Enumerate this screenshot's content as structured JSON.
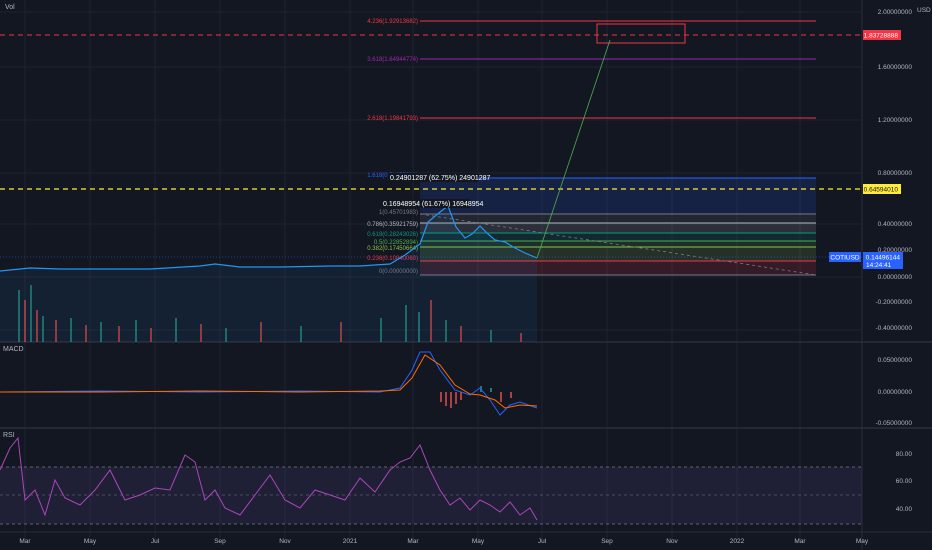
{
  "panels": {
    "main_label": "Vol",
    "macd_label": "MACD",
    "rsi_label": "RSI"
  },
  "currency": "USD",
  "price_axis": {
    "main_ticks": [
      "2.00000000",
      "1.60000000",
      "1.20000000",
      "0.80000000",
      "0.40000000",
      "0.20000000",
      "0.00000000",
      "-0.20000000",
      "-0.40000000"
    ],
    "macd_ticks": [
      "0.05000000",
      "0.00000000",
      "-0.05000000"
    ],
    "rsi_ticks": [
      "80.00",
      "60.00",
      "40.00"
    ]
  },
  "time_axis": [
    "Mar",
    "May",
    "Jul",
    "Sep",
    "Nov",
    "2021",
    "Mar",
    "May",
    "Jul",
    "Sep",
    "Nov",
    "2022",
    "Mar",
    "May"
  ],
  "badges": {
    "red_level": "1.83728888",
    "yellow_level": "0.64594010",
    "symbol": "COTIUSD",
    "last_price": "0.14496144",
    "countdown": "14:24:41"
  },
  "fib_levels": [
    {
      "label": "4.236(1.92913682)",
      "color": "#f23645"
    },
    {
      "label": "3.618(1.64944774)",
      "color": "#9c27b0"
    },
    {
      "label": "2.618(1.19841793)",
      "color": "#f23645"
    },
    {
      "label": "1.618(0.74675082)",
      "color": "#2962ff"
    },
    {
      "label": "1(0.45701983)",
      "color": "#787b86"
    },
    {
      "label": "0.786(0.35921759)",
      "color": "#b2b5be"
    },
    {
      "label": "0.618(0.28243026)",
      "color": "#089981"
    },
    {
      "label": "0.5(0.22852894)",
      "color": "#4caf50"
    },
    {
      "label": "0.382(0.17450664)",
      "color": "#8bc34a"
    },
    {
      "label": "0.236(0.10840060)",
      "color": "#f23645"
    },
    {
      "label": "0(0.00000000)",
      "color": "#787b86"
    }
  ],
  "measure_labels": {
    "top": "0.24901287 (62.75%) 24901287",
    "lower": "0.16948954 (61.67%) 16948954"
  },
  "colors": {
    "price": "#2196f3",
    "macd": "#2962ff",
    "signal": "#ff6d00",
    "rsi": "#7e57c2",
    "projection": "#4caf50"
  }
}
